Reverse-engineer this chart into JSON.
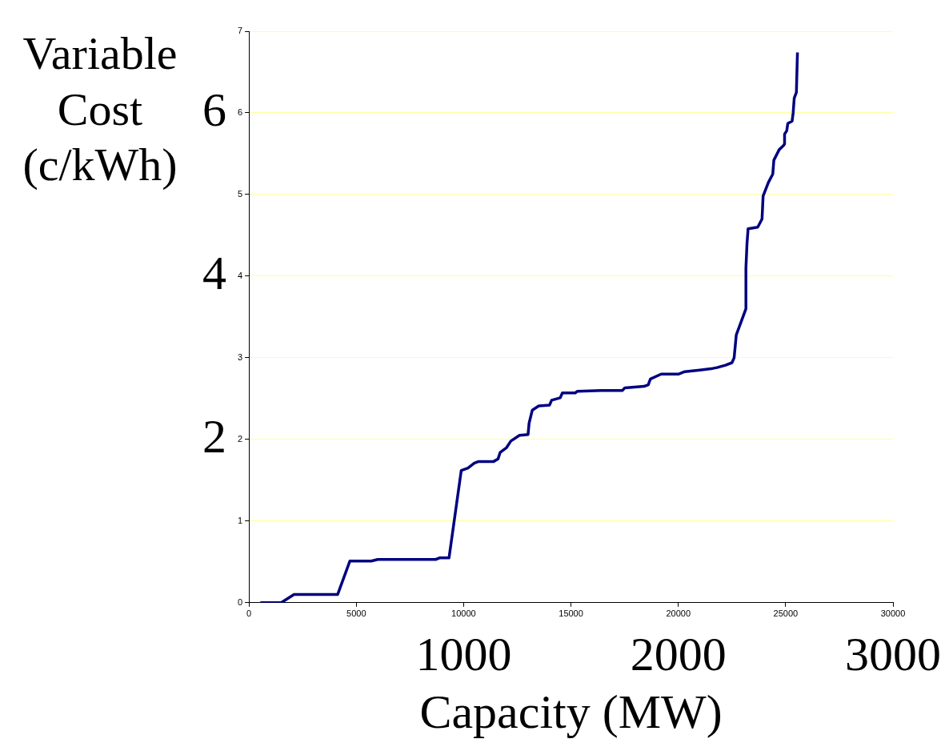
{
  "chart_data": {
    "type": "line",
    "xlabel": "Capacity (MW)",
    "y2label": "Variable Cost (c/kWh)",
    "x": [
      530,
      1500,
      2100,
      4130,
      4700,
      5700,
      6000,
      8700,
      8900,
      9320,
      9890,
      10200,
      10500,
      10700,
      11400,
      11600,
      11700,
      12000,
      12200,
      12600,
      13000,
      13050,
      13200,
      13500,
      14000,
      14100,
      14500,
      14600,
      15200,
      15300,
      16400,
      17400,
      17500,
      18400,
      18600,
      18700,
      19200,
      20000,
      20300,
      21000,
      21600,
      21800,
      22200,
      22500,
      22600,
      22700,
      23150,
      23150,
      23200,
      23250,
      23700,
      23900,
      23950,
      24200,
      24400,
      24450,
      24700,
      24900,
      24950,
      24950,
      25050,
      25100,
      25300,
      25350,
      25400,
      25500,
      25550
    ],
    "values": [
      0,
      0,
      0.1,
      0.1,
      0.51,
      0.51,
      0.53,
      0.53,
      0.55,
      0.55,
      1.62,
      1.65,
      1.71,
      1.73,
      1.73,
      1.76,
      1.84,
      1.9,
      1.98,
      2.05,
      2.06,
      2.2,
      2.36,
      2.41,
      2.42,
      2.48,
      2.51,
      2.57,
      2.57,
      2.59,
      2.6,
      2.6,
      2.63,
      2.65,
      2.67,
      2.74,
      2.8,
      2.8,
      2.83,
      2.85,
      2.87,
      2.88,
      2.91,
      2.94,
      3.0,
      3.28,
      3.6,
      4.1,
      4.4,
      4.58,
      4.6,
      4.7,
      4.98,
      5.15,
      5.25,
      5.42,
      5.55,
      5.6,
      5.62,
      5.74,
      5.78,
      5.87,
      5.9,
      6.0,
      6.18,
      6.25,
      6.74
    ],
    "color": "#000080",
    "xlim": [
      0,
      30000
    ],
    "xticks": [
      0,
      5000,
      10000,
      15000,
      20000,
      25000,
      30000
    ],
    "ylim": [
      0,
      7
    ],
    "yticks": [
      0,
      1,
      2,
      3,
      4,
      5,
      6,
      7
    ],
    "x2lim": [
      0,
      3000
    ],
    "x2ticks": [
      1000,
      2000,
      3000
    ],
    "y2lim": [
      0,
      7
    ],
    "y2ticks": [
      2,
      4,
      6
    ],
    "grid": "y"
  }
}
